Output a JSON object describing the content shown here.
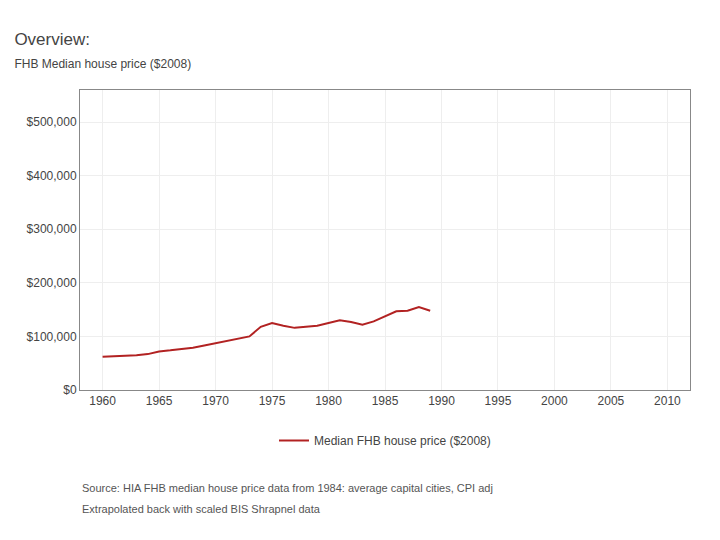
{
  "chart_data": {
    "type": "line",
    "title": "Overview:",
    "subtitle": "FHB Median house price ($2008)",
    "x": [
      1960,
      1961,
      1962,
      1963,
      1964,
      1965,
      1966,
      1967,
      1968,
      1969,
      1970,
      1971,
      1972,
      1973,
      1974,
      1975,
      1976,
      1977,
      1978,
      1979,
      1980,
      1981,
      1982,
      1983,
      1984,
      1985,
      1986,
      1987,
      1988,
      1989
    ],
    "series": [
      {
        "name": "Median FHB house price ($2008)",
        "color": "#b22222",
        "values": [
          62000,
          63000,
          63500,
          65000,
          67000,
          72000,
          74000,
          76000,
          79000,
          83000,
          87000,
          91000,
          95000,
          100000,
          118000,
          125000,
          120000,
          116000,
          118000,
          120000,
          125000,
          130000,
          127000,
          122000,
          128000,
          138000,
          147000,
          148000,
          155000,
          148000
        ]
      }
    ],
    "xlim": [
      1958,
      2012
    ],
    "xticks": [
      1960,
      1965,
      1970,
      1975,
      1980,
      1985,
      1990,
      1995,
      2000,
      2005,
      2010
    ],
    "ylim": [
      0,
      560000
    ],
    "yticks": [
      {
        "value": 0,
        "label": "$0"
      },
      {
        "value": 100000,
        "label": "$100,000"
      },
      {
        "value": 200000,
        "label": "$200,000"
      },
      {
        "value": 300000,
        "label": "$300,000"
      },
      {
        "value": 400000,
        "label": "$400,000"
      },
      {
        "value": 500000,
        "label": "$500,000"
      }
    ],
    "grid": true,
    "legend": "bottom",
    "annotations": [
      "Source: HIA FHB median house price data from 1984: average capital cities, CPI adj",
      "Extrapolated back with scaled BIS Shrapnel data"
    ]
  }
}
